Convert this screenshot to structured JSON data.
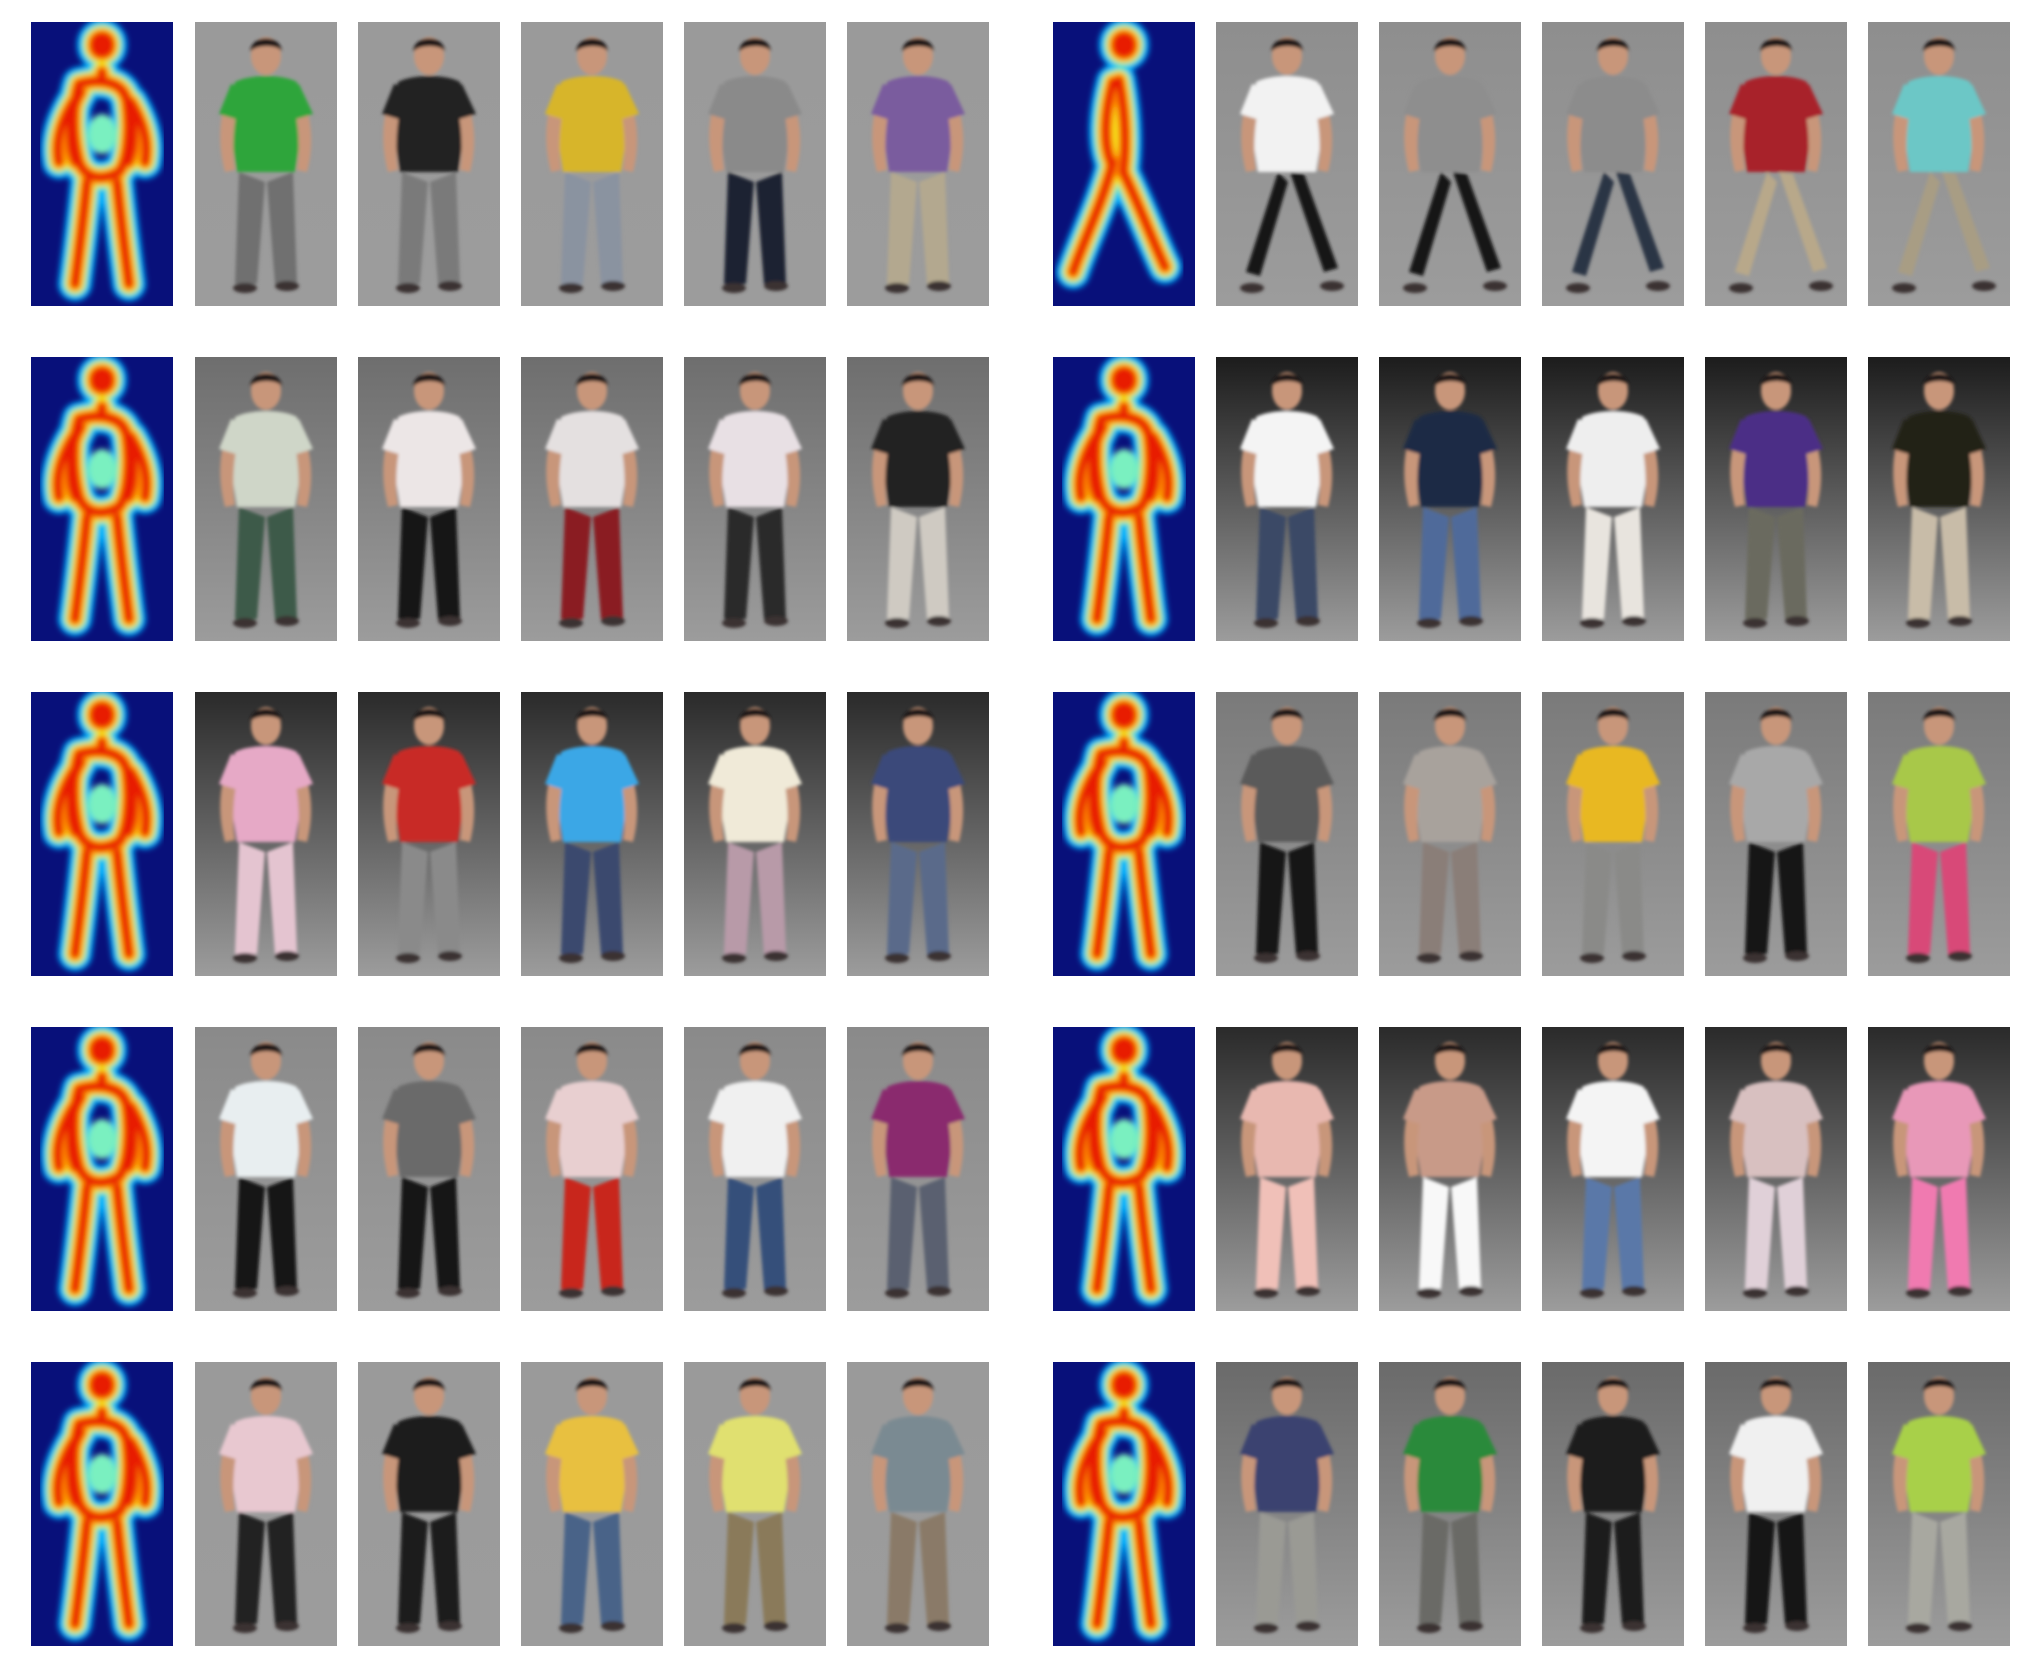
{
  "figure": {
    "description_hidden": true,
    "groups": [
      {
        "pose": "walking-front",
        "rows": [
          [
            "#2fa53a",
            "#242424",
            "#d7b52c",
            "#8a8a8a",
            "#7a5c9e"
          ]
        ]
      },
      {
        "pose": "striding-side",
        "rows": [
          [
            "#f2f2f2",
            "#8e8e8e",
            "#8c8c8c",
            "#a8202b",
            "#6cc7c6"
          ]
        ]
      }
    ],
    "rows": [
      {
        "left": {
          "shirts": [
            "#2fa53a",
            "#242424",
            "#d7b52c",
            "#8a8a8a",
            "#7a5c9e"
          ],
          "bottoms": [
            "#6f6f6f",
            "#7a7a7a",
            "#8a93a0",
            "#1e2430",
            "#b3a88f"
          ],
          "bg": "#9a9a9a"
        },
        "right": {
          "shirts": [
            "#f2f2f2",
            "#8e8e8e",
            "#8c8c8c",
            "#a8202b",
            "#6cc7c6"
          ],
          "bottoms": [
            "#141414",
            "#181818",
            "#2a3444",
            "#b8a88a",
            "#a89d84"
          ],
          "bg": "#8e8e8e"
        }
      },
      {
        "left": {
          "shirts": [
            "#cfd6c8",
            "#ece6e6",
            "#e4e0e0",
            "#e8e0e4",
            "#222222"
          ],
          "bottoms": [
            "#3e5a48",
            "#121212",
            "#8a1a24",
            "#2a2a2a",
            "#cfcac2"
          ],
          "bg": "#6e6e6e"
        },
        "right": {
          "shirts": [
            "#f4f4f4",
            "#1c2a44",
            "#eeeeee",
            "#4b2f86",
            "#242018"
          ],
          "bottoms": [
            "#3a4866",
            "#4f6a9a",
            "#e8e4de",
            "#6a6a5e",
            "#c8bca8"
          ],
          "bg": "#1c1c1c"
        }
      },
      {
        "left": {
          "shirts": [
            "#e6a9c6",
            "#c82a26",
            "#3ba7e6",
            "#f0ead8",
            "#3a4a7a"
          ],
          "bottoms": [
            "#e4c4d0",
            "#8a8a8a",
            "#3a4a6e",
            "#b89aa8",
            "#5a6a8a"
          ],
          "bg": "#2a2a2a"
        },
        "right": {
          "shirts": [
            "#5a5a5a",
            "#a8a29c",
            "#e8b824",
            "#a8a8a8",
            "#a8c84a"
          ],
          "bottoms": [
            "#141414",
            "#8a7e78",
            "#8a8a88",
            "#141414",
            "#d84a78"
          ],
          "bg": "#7a7a7a"
        }
      },
      {
        "left": {
          "shirts": [
            "#e8eef0",
            "#6a6a6a",
            "#e8cfd0",
            "#f0f0f0",
            "#8a2a6e"
          ],
          "bottoms": [
            "#181818",
            "#121212",
            "#c8281e",
            "#34507a",
            "#5a6070"
          ],
          "bg": "#8a8a8a"
        },
        "right": {
          "shirts": [
            "#e8b8b0",
            "#c89a88",
            "#f4f4f4",
            "#d8c0c0",
            "#e898b8"
          ],
          "bottoms": [
            "#f0c0b8",
            "#f8f8f8",
            "#5a78a8",
            "#e0d0d8",
            "#f07ab0"
          ],
          "bg": "#2a2a2a"
        }
      },
      {
        "left": {
          "shirts": [
            "#e8c8d0",
            "#1a1a1a",
            "#e8c040",
            "#e0e070",
            "#7a8a92"
          ],
          "bottoms": [
            "#222222",
            "#1a1a1a",
            "#4a6488",
            "#8a7a5a",
            "#8a7a68"
          ],
          "bg": "#9a9a9a"
        },
        "right": {
          "shirts": [
            "#3a4270",
            "#2a8a3a",
            "#1c1c1c",
            "#f0f0f0",
            "#a8d048"
          ],
          "bottoms": [
            "#9a9a94",
            "#6a6a66",
            "#1a1a1a",
            "#141414",
            "#a8a8a0"
          ],
          "bg": "#6a6a6a"
        }
      }
    ]
  }
}
